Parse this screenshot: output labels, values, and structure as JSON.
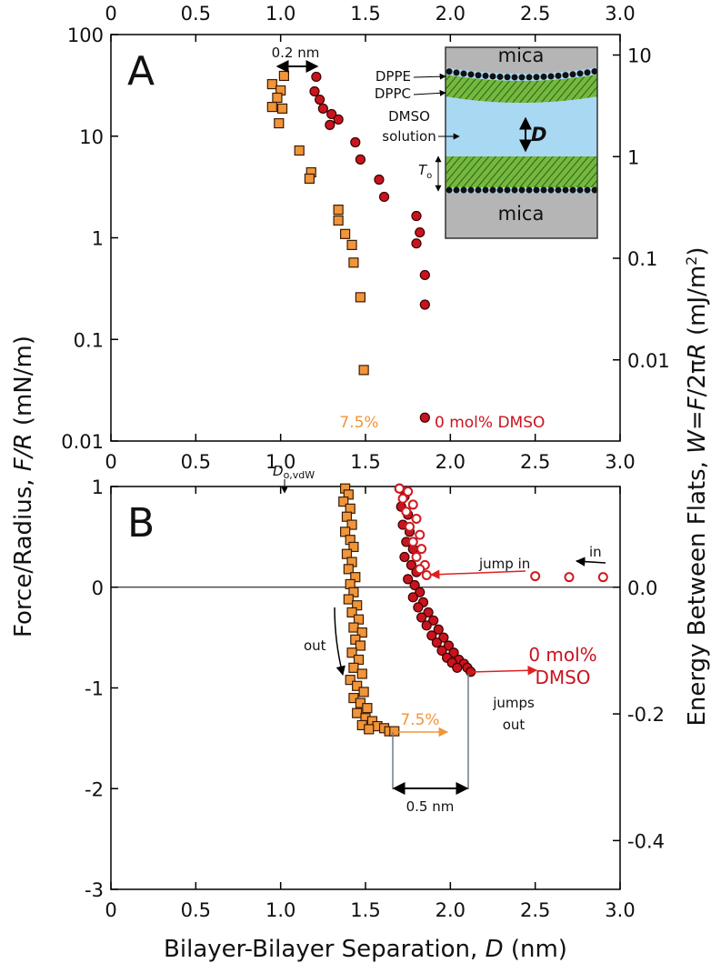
{
  "shared_labels": {
    "ylabel": [
      "Force/Radius, ",
      "F/R",
      " (mN/m)"
    ],
    "y2label": [
      "Energy Between Flats, ",
      "W",
      "=",
      "F",
      "/2π",
      "R",
      " (mJ/m",
      "2",
      ")"
    ]
  },
  "chart_data": [
    {
      "type": "scatter",
      "panel_label": "A",
      "log_y": true,
      "log_y2": true,
      "xlim": [
        0,
        3
      ],
      "xticks": [
        0,
        0.5,
        {
          "value": 1,
          "label": "1.0"
        },
        1.5,
        {
          "value": 2,
          "label": "2.0"
        },
        2.5,
        {
          "value": 3,
          "label": "3.0"
        }
      ],
      "xtick_labels": [
        "top",
        "bottom"
      ],
      "ylim": [
        0.01,
        100
      ],
      "yticks": [
        100,
        10,
        1,
        0.1,
        0.01
      ],
      "y2lim": [
        0.00159,
        15.9
      ],
      "y2ticks": [
        10,
        1,
        0.1,
        0.01
      ],
      "series": [
        {
          "name": "7.5%",
          "color": "#f0953a",
          "marker": "square",
          "x": [
            0.95,
            1.0,
            0.98,
            1.02,
            0.95,
            1.01,
            0.99,
            1.11,
            1.18,
            1.17,
            1.34,
            1.34,
            1.38,
            1.42,
            1.43,
            1.47,
            1.49
          ],
          "values": [
            32.5,
            28.2,
            23.9,
            39.2,
            19.4,
            18.7,
            13.4,
            7.23,
            4.41,
            3.82,
            1.89,
            1.48,
            1.09,
            0.85,
            0.57,
            0.26,
            0.05
          ]
        },
        {
          "name": "0 mol% DMSO",
          "color": "#c8141e",
          "marker": "circle",
          "x": [
            1.21,
            1.2,
            1.23,
            1.25,
            1.3,
            1.34,
            1.29,
            1.44,
            1.47,
            1.58,
            1.61,
            1.8,
            1.82,
            1.8,
            1.85,
            1.85,
            1.85
          ],
          "values": [
            38.4,
            27.6,
            22.9,
            18.7,
            16.5,
            14.6,
            12.9,
            8.7,
            5.9,
            3.74,
            2.53,
            1.64,
            1.13,
            0.88,
            0.43,
            0.22,
            0.017
          ]
        }
      ],
      "annotations": {
        "scale_bar": "0.2 nm",
        "dppe": "DPPE",
        "dppc": "DPPC",
        "solution": [
          "DMSO",
          "solution"
        ],
        "separation": "D",
        "thickness": "T",
        "thickness_sub": "o",
        "mica_top": "mica",
        "mica_bottom": "mica"
      }
    },
    {
      "type": "scatter",
      "panel_label": "B",
      "xlim": [
        0,
        3
      ],
      "xticks": [
        0,
        0.5,
        {
          "value": 1,
          "label": "1.0"
        },
        1.5,
        {
          "value": 2,
          "label": "2.0"
        },
        2.5,
        {
          "value": 3,
          "label": "3.0"
        }
      ],
      "xtick_labels": [
        "bottom"
      ],
      "xlabel": [
        "Bilayer-Bilayer Separation, ",
        "D",
        " (nm)"
      ],
      "ylim": [
        -3,
        1
      ],
      "yticks": [
        1,
        0,
        -1,
        -2,
        -3
      ],
      "y2lim": [
        -0.477,
        0.159
      ],
      "y2ticks": [
        {
          "value": 0,
          "label": "0.0"
        },
        -0.2,
        -0.4
      ],
      "reference_line": 0,
      "series": [
        {
          "name": "7.5%",
          "color": "#f0953a",
          "marker": "square",
          "x": [
            1.38,
            1.4,
            1.37,
            1.41,
            1.39,
            1.42,
            1.38,
            1.41,
            1.43,
            1.39,
            1.42,
            1.4,
            1.44,
            1.41,
            1.43,
            1.4,
            1.45,
            1.42,
            1.46,
            1.43,
            1.48,
            1.44,
            1.47,
            1.42,
            1.46,
            1.43,
            1.48,
            1.41,
            1.45,
            1.49,
            1.43,
            1.47,
            1.51,
            1.45,
            1.5,
            1.54,
            1.48,
            1.57,
            1.52,
            1.61,
            1.64,
            1.67
          ],
          "values": [
            0.98,
            0.92,
            0.85,
            0.78,
            0.7,
            0.62,
            0.55,
            0.47,
            0.4,
            0.33,
            0.25,
            0.18,
            0.1,
            0.03,
            -0.05,
            -0.12,
            -0.18,
            -0.25,
            -0.32,
            -0.4,
            -0.45,
            -0.52,
            -0.58,
            -0.65,
            -0.72,
            -0.8,
            -0.86,
            -0.92,
            -0.98,
            -1.04,
            -1.1,
            -1.15,
            -1.2,
            -1.25,
            -1.3,
            -1.33,
            -1.37,
            -1.38,
            -1.41,
            -1.4,
            -1.43,
            -1.43
          ]
        },
        {
          "name": "0 mol% DMSO",
          "color": "#c8141e",
          "marker": "circle",
          "x": [
            1.7,
            1.73,
            1.71,
            1.75,
            1.72,
            1.76,
            1.74,
            1.78,
            1.73,
            1.77,
            1.8,
            1.75,
            1.79,
            1.82,
            1.78,
            1.84,
            1.81,
            1.87,
            1.83,
            1.9,
            1.86,
            1.93,
            1.89,
            1.96,
            1.92,
            1.99,
            1.95,
            2.02,
            1.98,
            2.05,
            2.01,
            2.08,
            2.04,
            2.1,
            2.12
          ],
          "values": [
            0.98,
            0.9,
            0.8,
            0.72,
            0.62,
            0.55,
            0.45,
            0.38,
            0.3,
            0.22,
            0.15,
            0.08,
            0.02,
            -0.05,
            -0.1,
            -0.15,
            -0.2,
            -0.25,
            -0.3,
            -0.33,
            -0.38,
            -0.42,
            -0.48,
            -0.5,
            -0.55,
            -0.58,
            -0.63,
            -0.65,
            -0.7,
            -0.72,
            -0.75,
            -0.76,
            -0.8,
            -0.8,
            -0.84
          ]
        },
        {
          "color": "#d01a20",
          "marker": "open-circle",
          "x": [
            1.7,
            1.75,
            1.72,
            1.78,
            1.74,
            1.8,
            1.76,
            1.82,
            1.78,
            1.83,
            1.8,
            1.85,
            1.82,
            1.86,
            2.5,
            2.7,
            2.9
          ],
          "values": [
            0.98,
            0.95,
            0.88,
            0.82,
            0.75,
            0.68,
            0.6,
            0.52,
            0.45,
            0.38,
            0.3,
            0.22,
            0.18,
            0.12,
            0.11,
            0.1,
            0.1
          ]
        }
      ],
      "annotations": {
        "vdw": "D",
        "vdw_sub": "o,vdW",
        "jump_in": "jump in",
        "in": "in",
        "out": "out",
        "jumps_out": [
          "jumps",
          "out"
        ],
        "gap": "0.5 nm"
      }
    }
  ]
}
